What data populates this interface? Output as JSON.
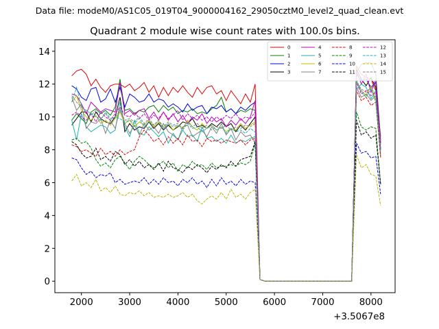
{
  "suptitle": "Data file: modeM0/AS1C05_019T04_9000004162_29050cztM0_level2_quad_clean.evt",
  "chart_data": {
    "type": "line",
    "title": "Quadrant 2 module wise count rates with 100.0s bins.",
    "xlabel": "",
    "ylabel": "",
    "x_offset_label": "+3.5067e8",
    "xlim": [
      1450,
      8500
    ],
    "ylim": [
      -0.7,
      14.7
    ],
    "xticks": [
      2000,
      3000,
      4000,
      5000,
      6000,
      7000,
      8000
    ],
    "yticks": [
      0,
      2,
      4,
      6,
      8,
      10,
      12,
      14
    ],
    "grid": false,
    "legend_position": "top-right",
    "x": [
      1800,
      1900,
      2000,
      2100,
      2200,
      2300,
      2400,
      2500,
      2600,
      2700,
      2800,
      2900,
      3000,
      3100,
      3200,
      3300,
      3400,
      3500,
      3600,
      3700,
      3800,
      3900,
      4000,
      4100,
      4200,
      4300,
      4400,
      4500,
      4600,
      4700,
      4800,
      4900,
      5000,
      5100,
      5200,
      5300,
      5400,
      5500,
      5600,
      5700,
      5800,
      5900,
      6000,
      6100,
      6200,
      6300,
      6400,
      6500,
      6600,
      6700,
      6800,
      6900,
      7000,
      7100,
      7200,
      7300,
      7400,
      7500,
      7600,
      7700,
      7800,
      7900,
      8000,
      8100,
      8200
    ],
    "series": [
      {
        "name": "0",
        "color": "#e00000",
        "dash": "solid",
        "values": [
          12.5,
          12.8,
          12.9,
          12.6,
          11.9,
          12.3,
          11.8,
          11.5,
          11.9,
          12.0,
          12.0,
          11.8,
          12.0,
          11.6,
          11.8,
          12.1,
          11.5,
          11.9,
          11.2,
          11.8,
          11.3,
          11.8,
          11.5,
          11.9,
          11.5,
          11.2,
          11.8,
          11.4,
          11.8,
          11.9,
          11.4,
          11.6,
          11.0,
          11.6,
          11.2,
          10.8,
          11.4,
          10.9,
          12.0,
          0.1,
          0.0,
          0.0,
          0.0,
          0.0,
          0.0,
          0.0,
          0.0,
          0.0,
          0.0,
          0.0,
          0.0,
          0.0,
          0.0,
          0.0,
          0.0,
          0.0,
          0.0,
          0.0,
          0.0,
          13.1,
          12.6,
          12.4,
          12.3,
          11.6,
          8.8
        ]
      },
      {
        "name": "1",
        "color": "#008000",
        "dash": "solid",
        "values": [
          9.8,
          10.2,
          9.9,
          9.6,
          10.3,
          10.5,
          10.2,
          10.4,
          10.1,
          10.6,
          12.3,
          10.4,
          10.5,
          10.2,
          10.4,
          10.3,
          10.6,
          10.7,
          10.3,
          10.7,
          10.4,
          10.6,
          10.2,
          10.4,
          10.3,
          10.5,
          10.2,
          10.3,
          10.2,
          10.5,
          10.7,
          11.2,
          10.3,
          10.5,
          10.2,
          10.4,
          10.3,
          10.5,
          10.4,
          0.1,
          0.0,
          0.0,
          0.0,
          0.0,
          0.0,
          0.0,
          0.0,
          0.0,
          0.0,
          0.0,
          0.0,
          0.0,
          0.0,
          0.0,
          0.0,
          0.0,
          0.0,
          0.0,
          0.0,
          12.7,
          13.2,
          13.3,
          13.3,
          12.6,
          8.6
        ]
      },
      {
        "name": "2",
        "color": "#0000e0",
        "dash": "solid",
        "values": [
          11.9,
          11.7,
          11.2,
          11.0,
          11.7,
          11.8,
          10.9,
          11.1,
          11.7,
          10.9,
          11.8,
          10.6,
          11.4,
          11.2,
          10.9,
          11.0,
          11.4,
          10.9,
          11.1,
          11.0,
          10.6,
          10.8,
          10.6,
          10.3,
          10.8,
          10.4,
          10.6,
          10.7,
          10.2,
          10.6,
          10.5,
          10.7,
          10.3,
          10.5,
          10.2,
          10.6,
          10.4,
          10.7,
          10.9,
          0.1,
          0.0,
          0.0,
          0.0,
          0.0,
          0.0,
          0.0,
          0.0,
          0.0,
          0.0,
          0.0,
          0.0,
          0.0,
          0.0,
          0.0,
          0.0,
          0.0,
          0.0,
          0.0,
          0.0,
          12.6,
          12.2,
          12.3,
          11.8,
          12.1,
          8.4
        ]
      },
      {
        "name": "3",
        "color": "#000000",
        "dash": "solid",
        "values": [
          9.5,
          9.9,
          10.3,
          10.3,
          9.7,
          10.3,
          9.9,
          9.7,
          9.6,
          10.0,
          11.2,
          9.1,
          9.6,
          9.2,
          9.4,
          9.3,
          9.7,
          9.3,
          9.6,
          9.2,
          9.5,
          9.2,
          9.4,
          9.7,
          9.6,
          9.9,
          9.4,
          9.5,
          9.3,
          9.6,
          9.4,
          9.7,
          9.4,
          9.6,
          9.1,
          9.5,
          9.2,
          9.6,
          10.0,
          0.1,
          0.0,
          0.0,
          0.0,
          0.0,
          0.0,
          0.0,
          0.0,
          0.0,
          0.0,
          0.0,
          0.0,
          0.0,
          0.0,
          0.0,
          0.0,
          0.0,
          0.0,
          0.0,
          0.0,
          12.9,
          12.3,
          11.9,
          12.4,
          11.8,
          8.0
        ]
      },
      {
        "name": "4",
        "color": "#c000c0",
        "dash": "solid",
        "values": [
          11.4,
          11.3,
          10.8,
          10.2,
          10.9,
          10.6,
          10.3,
          10.5,
          10.4,
          10.3,
          12.1,
          10.2,
          10.4,
          10.1,
          10.4,
          10.5,
          9.9,
          10.3,
          9.8,
          10.3,
          9.8,
          10.2,
          9.7,
          10.1,
          9.6,
          10.0,
          9.8,
          10.2,
          9.6,
          10.0,
          9.7,
          9.9,
          9.4,
          9.8,
          9.5,
          9.9,
          9.6,
          10.0,
          11.0,
          0.1,
          0.0,
          0.0,
          0.0,
          0.0,
          0.0,
          0.0,
          0.0,
          0.0,
          0.0,
          0.0,
          0.0,
          0.0,
          0.0,
          0.0,
          0.0,
          0.0,
          0.0,
          0.0,
          0.0,
          12.8,
          12.0,
          12.6,
          11.5,
          12.3,
          8.5
        ]
      },
      {
        "name": "5",
        "color": "#20b2aa",
        "dash": "solid",
        "values": [
          9.8,
          8.6,
          10.2,
          9.4,
          9.1,
          9.3,
          9.5,
          9.4,
          9.0,
          9.2,
          10.9,
          9.4,
          8.8,
          9.8,
          9.0,
          8.9,
          9.4,
          9.1,
          8.8,
          9.1,
          8.4,
          9.0,
          8.6,
          9.2,
          8.8,
          8.9,
          8.5,
          9.4,
          8.7,
          8.8,
          8.5,
          8.7,
          8.4,
          8.9,
          8.4,
          8.6,
          8.5,
          8.7,
          8.8,
          0.1,
          0.0,
          0.0,
          0.0,
          0.0,
          0.0,
          0.0,
          0.0,
          0.0,
          0.0,
          0.0,
          0.0,
          0.0,
          0.0,
          0.0,
          0.0,
          0.0,
          0.0,
          0.0,
          0.0,
          11.7,
          12.0,
          11.8,
          11.1,
          11.6,
          7.6
        ]
      },
      {
        "name": "6",
        "color": "#b8b800",
        "dash": "solid",
        "values": [
          10.9,
          11.3,
          10.4,
          10.0,
          9.8,
          10.1,
          9.6,
          9.8,
          9.5,
          9.9,
          10.3,
          9.6,
          9.8,
          9.4,
          9.7,
          9.5,
          9.8,
          9.4,
          9.7,
          9.3,
          9.6,
          9.2,
          9.5,
          9.3,
          9.8,
          9.4,
          9.2,
          9.6,
          9.3,
          9.5,
          9.2,
          9.4,
          9.1,
          9.3,
          9.2,
          9.6,
          9.3,
          9.5,
          9.7,
          0.1,
          0.0,
          0.0,
          0.0,
          0.0,
          0.0,
          0.0,
          0.0,
          0.0,
          0.0,
          0.0,
          0.0,
          0.0,
          0.0,
          0.0,
          0.0,
          0.0,
          0.0,
          0.0,
          0.0,
          12.2,
          11.6,
          11.3,
          11.9,
          11.0,
          7.8
        ]
      },
      {
        "name": "7",
        "color": "#808080",
        "dash": "solid",
        "values": [
          11.2,
          10.4,
          10.8,
          9.3,
          9.7,
          9.6,
          9.9,
          9.0,
          9.8,
          9.3,
          10.5,
          9.6,
          9.0,
          9.5,
          8.9,
          9.6,
          9.2,
          9.4,
          9.0,
          9.6,
          9.1,
          8.9,
          8.6,
          9.4,
          9.5,
          8.8,
          9.0,
          9.2,
          8.8,
          9.4,
          9.0,
          9.6,
          8.9,
          9.3,
          8.6,
          9.1,
          8.8,
          8.9,
          8.4,
          0.1,
          0.0,
          0.0,
          0.0,
          0.0,
          0.0,
          0.0,
          0.0,
          0.0,
          0.0,
          0.0,
          0.0,
          0.0,
          0.0,
          0.0,
          0.0,
          0.0,
          0.0,
          0.0,
          0.0,
          11.8,
          11.2,
          11.4,
          11.0,
          11.3,
          7.7
        ]
      },
      {
        "name": "8",
        "color": "#e00000",
        "dash": "dashed",
        "values": [
          8.3,
          8.2,
          7.9,
          8.0,
          7.8,
          7.6,
          8.1,
          7.7,
          7.9,
          7.6,
          8.0,
          7.7,
          7.9,
          8.0,
          8.8,
          9.2,
          8.9,
          8.5,
          8.7,
          8.3,
          8.8,
          8.4,
          8.7,
          8.3,
          8.9,
          8.5,
          8.6,
          8.2,
          8.7,
          8.5,
          8.6,
          8.4,
          8.6,
          8.5,
          8.4,
          8.6,
          8.3,
          8.6,
          8.7,
          0.1,
          0.0,
          0.0,
          0.0,
          0.0,
          0.0,
          0.0,
          0.0,
          0.0,
          0.0,
          0.0,
          0.0,
          0.0,
          0.0,
          0.0,
          0.0,
          0.0,
          0.0,
          0.0,
          0.0,
          11.6,
          11.0,
          11.2,
          10.7,
          10.9,
          7.5
        ]
      },
      {
        "name": "9",
        "color": "#008000",
        "dash": "dashed",
        "values": [
          8.6,
          8.7,
          8.4,
          8.5,
          8.1,
          7.4,
          7.0,
          7.2,
          6.9,
          7.4,
          7.6,
          7.2,
          6.8,
          7.3,
          7.6,
          7.4,
          7.1,
          6.9,
          7.1,
          7.3,
          6.9,
          7.2,
          6.7,
          7.1,
          6.9,
          7.3,
          7.0,
          7.1,
          6.8,
          7.2,
          6.9,
          7.0,
          7.0,
          7.1,
          7.0,
          7.2,
          7.1,
          7.3,
          8.4,
          0.1,
          0.0,
          0.0,
          0.0,
          0.0,
          0.0,
          0.0,
          0.0,
          0.0,
          0.0,
          0.0,
          0.0,
          0.0,
          0.0,
          0.0,
          0.0,
          0.0,
          0.0,
          0.0,
          0.0,
          10.3,
          9.4,
          9.2,
          9.4,
          9.3,
          5.9
        ]
      },
      {
        "name": "10",
        "color": "#0000e0",
        "dash": "dashed",
        "values": [
          7.5,
          7.4,
          6.9,
          6.5,
          6.7,
          6.3,
          6.5,
          6.4,
          6.6,
          6.0,
          6.2,
          5.9,
          6.0,
          6.1,
          6.0,
          6.3,
          5.9,
          6.2,
          5.9,
          6.3,
          6.0,
          6.1,
          5.8,
          6.2,
          6.0,
          6.3,
          5.9,
          6.1,
          5.7,
          6.2,
          5.8,
          6.3,
          5.9,
          6.1,
          5.8,
          6.2,
          5.9,
          6.1,
          6.0,
          0.1,
          0.0,
          0.0,
          0.0,
          0.0,
          0.0,
          0.0,
          0.0,
          0.0,
          0.0,
          0.0,
          0.0,
          0.0,
          0.0,
          0.0,
          0.0,
          0.0,
          0.0,
          0.0,
          0.0,
          8.4,
          7.8,
          7.9,
          7.5,
          7.6,
          5.3
        ]
      },
      {
        "name": "11",
        "color": "#000000",
        "dash": "dashed",
        "values": [
          8.5,
          8.3,
          7.8,
          7.5,
          7.6,
          8.1,
          7.4,
          7.6,
          7.3,
          7.9,
          7.7,
          7.1,
          7.4,
          7.0,
          7.3,
          6.9,
          7.1,
          6.8,
          7.2,
          6.7,
          7.3,
          6.9,
          6.8,
          6.6,
          7.0,
          6.8,
          7.1,
          6.9,
          6.6,
          7.0,
          6.8,
          7.1,
          6.9,
          7.3,
          7.0,
          7.4,
          7.5,
          7.6,
          8.5,
          0.1,
          0.0,
          0.0,
          0.0,
          0.0,
          0.0,
          0.0,
          0.0,
          0.0,
          0.0,
          0.0,
          0.0,
          0.0,
          0.0,
          0.0,
          0.0,
          0.0,
          0.0,
          0.0,
          0.0,
          9.8,
          8.9,
          9.1,
          8.7,
          8.9,
          5.9
        ]
      },
      {
        "name": "12",
        "color": "#c000c0",
        "dash": "dashed",
        "values": [
          10.1,
          10.3,
          10.0,
          9.8,
          10.2,
          9.7,
          10.3,
          10.0,
          9.8,
          10.2,
          10.6,
          10.1,
          10.0,
          10.3,
          9.9,
          10.2,
          9.8,
          10.1,
          9.9,
          10.3,
          9.9,
          10.1,
          10.4,
          9.8,
          10.2,
          9.9,
          10.1,
          9.8,
          10.0,
          9.7,
          10.0,
          9.8,
          10.1,
          9.9,
          10.2,
          9.8,
          10.0,
          9.9,
          10.3,
          0.1,
          0.0,
          0.0,
          0.0,
          0.0,
          0.0,
          0.0,
          0.0,
          0.0,
          0.0,
          0.0,
          0.0,
          0.0,
          0.0,
          0.0,
          0.0,
          0.0,
          0.0,
          0.0,
          0.0,
          12.1,
          11.4,
          11.6,
          11.3,
          11.5,
          8.1
        ]
      },
      {
        "name": "13",
        "color": "#20b2aa",
        "dash": "dashed",
        "values": [
          10.9,
          11.8,
          10.6,
          10.4,
          10.2,
          10.0,
          9.8,
          10.3,
          9.9,
          10.0,
          9.9,
          9.7,
          9.8,
          9.6,
          9.9,
          9.4,
          9.7,
          9.5,
          9.8,
          9.3,
          9.6,
          9.4,
          9.5,
          9.2,
          9.6,
          9.3,
          9.4,
          9.1,
          9.3,
          9.5,
          9.2,
          9.4,
          9.0,
          9.3,
          9.1,
          9.2,
          9.0,
          9.3,
          9.1,
          0.1,
          0.0,
          0.0,
          0.0,
          0.0,
          0.0,
          0.0,
          0.0,
          0.0,
          0.0,
          0.0,
          0.0,
          0.0,
          0.0,
          0.0,
          0.0,
          0.0,
          0.0,
          0.0,
          0.0,
          12.3,
          11.5,
          11.2,
          11.7,
          10.9,
          7.9
        ]
      },
      {
        "name": "14",
        "color": "#b8b800",
        "dash": "dashed",
        "values": [
          6.1,
          6.5,
          5.8,
          6.0,
          5.7,
          6.2,
          5.5,
          5.7,
          5.4,
          5.8,
          5.3,
          5.2,
          5.4,
          5.3,
          5.5,
          5.2,
          5.4,
          5.1,
          5.2,
          5.1,
          5.3,
          5.1,
          5.2,
          5.4,
          5.1,
          5.3,
          4.9,
          4.7,
          5.0,
          5.2,
          5.0,
          5.4,
          5.0,
          5.6,
          5.1,
          5.3,
          5.0,
          5.4,
          5.6,
          0.1,
          0.0,
          0.0,
          0.0,
          0.0,
          0.0,
          0.0,
          0.0,
          0.0,
          0.0,
          0.0,
          0.0,
          0.0,
          0.0,
          0.0,
          0.0,
          0.0,
          0.0,
          0.0,
          0.0,
          7.7,
          6.9,
          7.1,
          6.5,
          6.4,
          4.6
        ]
      },
      {
        "name": "15",
        "color": "#808080",
        "dash": "dashed",
        "values": [
          11.3,
          10.9,
          10.6,
          10.3,
          10.1,
          10.4,
          9.9,
          10.2,
          9.8,
          10.0,
          10.4,
          9.8,
          9.9,
          9.7,
          10.0,
          9.6,
          9.9,
          9.5,
          9.8,
          9.4,
          9.7,
          9.5,
          9.6,
          9.3,
          9.7,
          9.4,
          9.6,
          9.3,
          9.5,
          9.2,
          9.4,
          9.3,
          9.5,
          9.2,
          9.4,
          9.3,
          9.5,
          9.4,
          9.6,
          0.1,
          0.0,
          0.0,
          0.0,
          0.0,
          0.0,
          0.0,
          0.0,
          0.0,
          0.0,
          0.0,
          0.0,
          0.0,
          0.0,
          0.0,
          0.0,
          0.0,
          0.0,
          0.0,
          0.0,
          12.1,
          11.7,
          11.5,
          11.8,
          11.3,
          8.3
        ]
      }
    ]
  }
}
